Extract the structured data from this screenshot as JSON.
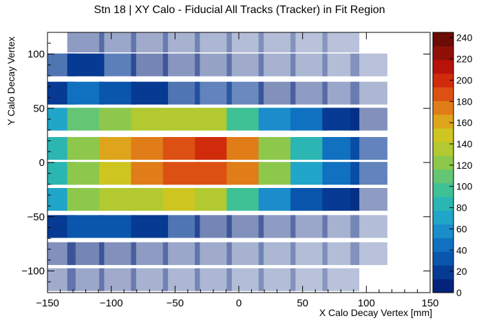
{
  "chart_data": {
    "type": "heatmap",
    "title": "Stn 18 | XY Calo - Fiducial All Tracks (Tracker) in Fit Region",
    "xlabel": "X Calo Decay Vertex [mm]",
    "ylabel": "Y Calo Decay Vertex",
    "xlim": [
      -150,
      150
    ],
    "ylim": [
      -120,
      120
    ],
    "x_ticks": [
      "−150",
      "−100",
      "−50",
      "0",
      "50",
      "100",
      "150"
    ],
    "x_tick_values": [
      -150,
      -100,
      -50,
      0,
      50,
      100,
      150
    ],
    "y_ticks": [
      "−100",
      "−50",
      "0",
      "50",
      "100"
    ],
    "y_tick_values": [
      -100,
      -50,
      0,
      50,
      100
    ],
    "colorbar": {
      "min": 0,
      "max": 245,
      "ticks": [
        "0",
        "20",
        "40",
        "60",
        "80",
        "100",
        "120",
        "140",
        "160",
        "180",
        "200",
        "220",
        "240"
      ],
      "tick_values": [
        0,
        20,
        40,
        60,
        80,
        100,
        120,
        140,
        160,
        180,
        200,
        220,
        240
      ]
    },
    "columns_x": [
      -142.5,
      -120,
      -95,
      -70,
      -45,
      -20,
      5,
      30,
      55,
      80,
      102
    ],
    "rows_y": [
      112,
      90,
      64,
      40,
      13,
      -10,
      -34,
      -59,
      -84,
      -108
    ],
    "cells": [
      [
        0,
        8,
        6,
        5,
        4,
        3,
        2,
        2,
        1,
        1,
        0
      ],
      [
        18,
        20,
        16,
        12,
        9,
        7,
        5,
        4,
        3,
        2,
        1
      ],
      [
        25,
        45,
        32,
        22,
        18,
        15,
        14,
        10,
        8,
        6,
        3
      ],
      [
        70,
        115,
        125,
        130,
        135,
        130,
        100,
        60,
        45,
        25,
        10
      ],
      [
        80,
        120,
        155,
        175,
        190,
        195,
        180,
        125,
        80,
        40,
        15
      ],
      [
        85,
        120,
        150,
        170,
        185,
        185,
        170,
        120,
        75,
        40,
        15
      ],
      [
        70,
        120,
        135,
        140,
        145,
        135,
        100,
        55,
        35,
        20,
        8
      ],
      [
        22,
        38,
        30,
        22,
        18,
        12,
        10,
        8,
        6,
        4,
        2
      ],
      [
        10,
        12,
        10,
        8,
        6,
        5,
        4,
        3,
        2,
        2,
        1
      ],
      [
        5,
        6,
        5,
        4,
        3,
        3,
        2,
        2,
        1,
        1,
        0
      ]
    ]
  },
  "palette": [
    "#04237a",
    "#063a93",
    "#0a56ad",
    "#1071c0",
    "#1a8dca",
    "#21a5c8",
    "#2bb6b3",
    "#3fc196",
    "#64c574",
    "#8dc84c",
    "#b2c931",
    "#cfc520",
    "#dea51c",
    "#e07d18",
    "#dc5113",
    "#d02c0c",
    "#b8120a",
    "#901008",
    "#6b0c05"
  ]
}
